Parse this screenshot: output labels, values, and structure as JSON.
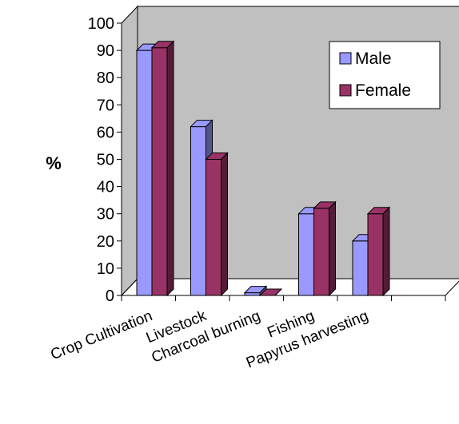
{
  "chart_data": {
    "type": "bar",
    "title": "",
    "xlabel": "",
    "ylabel": "%",
    "ylim": [
      0,
      100
    ],
    "yticks": [
      0,
      10,
      20,
      30,
      40,
      50,
      60,
      70,
      80,
      90,
      100
    ],
    "categories": [
      "Crop Cultivation",
      "Livestock",
      "Charcoal burning",
      "Fishing",
      "Papyrus harvesting"
    ],
    "series": [
      {
        "name": "Male",
        "values": [
          90,
          62,
          1,
          30,
          20
        ],
        "color": "#9999ff"
      },
      {
        "name": "Female",
        "values": [
          91,
          50,
          0,
          32,
          30
        ],
        "color": "#993366"
      }
    ],
    "legend_position": "top-right",
    "grid": false,
    "three_d": true,
    "wall_color": "#c0c0c0"
  }
}
